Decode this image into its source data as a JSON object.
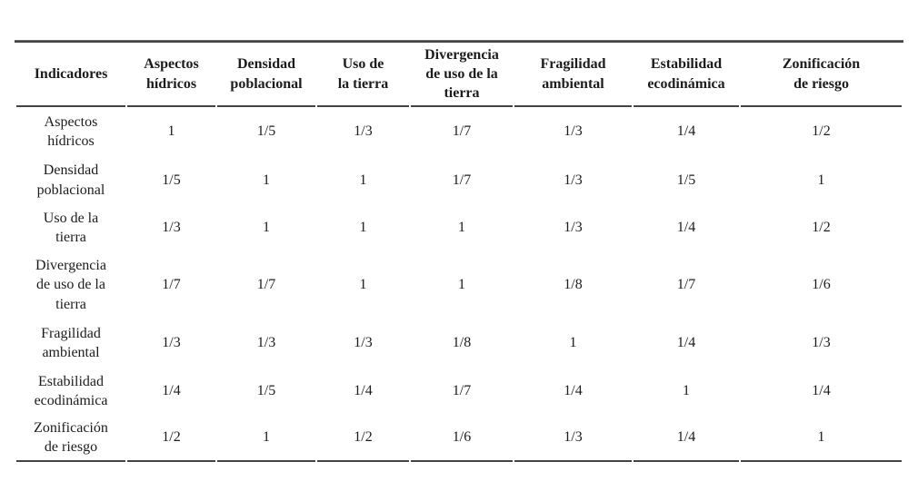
{
  "colors": {
    "rule": "#444444",
    "text": "#1c1c1c",
    "background": "#ffffff"
  },
  "table": {
    "name": "matriz-comparacion-indicadores",
    "header": [
      "Indicadores",
      "Aspectos\nhídricos",
      "Densidad\npoblacional",
      "Uso de\nla tierra",
      "Divergencia\nde uso de la\ntierra",
      "Fragilidad\nambiental",
      "Estabilidad\necodinámica",
      "Zonificación\nde riesgo"
    ],
    "rows": [
      {
        "label": "Aspectos\nhídricos",
        "values": [
          "1",
          "1/5",
          "1/3",
          "1/7",
          "1/3",
          "1/4",
          "1/2"
        ]
      },
      {
        "label": "Densidad\npoblacional",
        "values": [
          "1/5",
          "1",
          "1",
          "1/7",
          "1/3",
          "1/5",
          "1"
        ]
      },
      {
        "label": "Uso de la\ntierra",
        "values": [
          "1/3",
          "1",
          "1",
          "1",
          "1/3",
          "1/4",
          "1/2"
        ]
      },
      {
        "label": "Divergencia\nde uso de la\ntierra",
        "values": [
          "1/7",
          "1/7",
          "1",
          "1",
          "1/8",
          "1/7",
          "1/6"
        ]
      },
      {
        "label": "Fragilidad\nambiental",
        "values": [
          "1/3",
          "1/3",
          "1/3",
          "1/8",
          "1",
          "1/4",
          "1/3"
        ]
      },
      {
        "label": "Estabilidad\necodinámica",
        "values": [
          "1/4",
          "1/5",
          "1/4",
          "1/7",
          "1/4",
          "1",
          "1/4"
        ]
      },
      {
        "label": "Zonificación\nde riesgo",
        "values": [
          "1/2",
          "1",
          "1/2",
          "1/6",
          "1/3",
          "1/4",
          "1"
        ]
      }
    ]
  }
}
